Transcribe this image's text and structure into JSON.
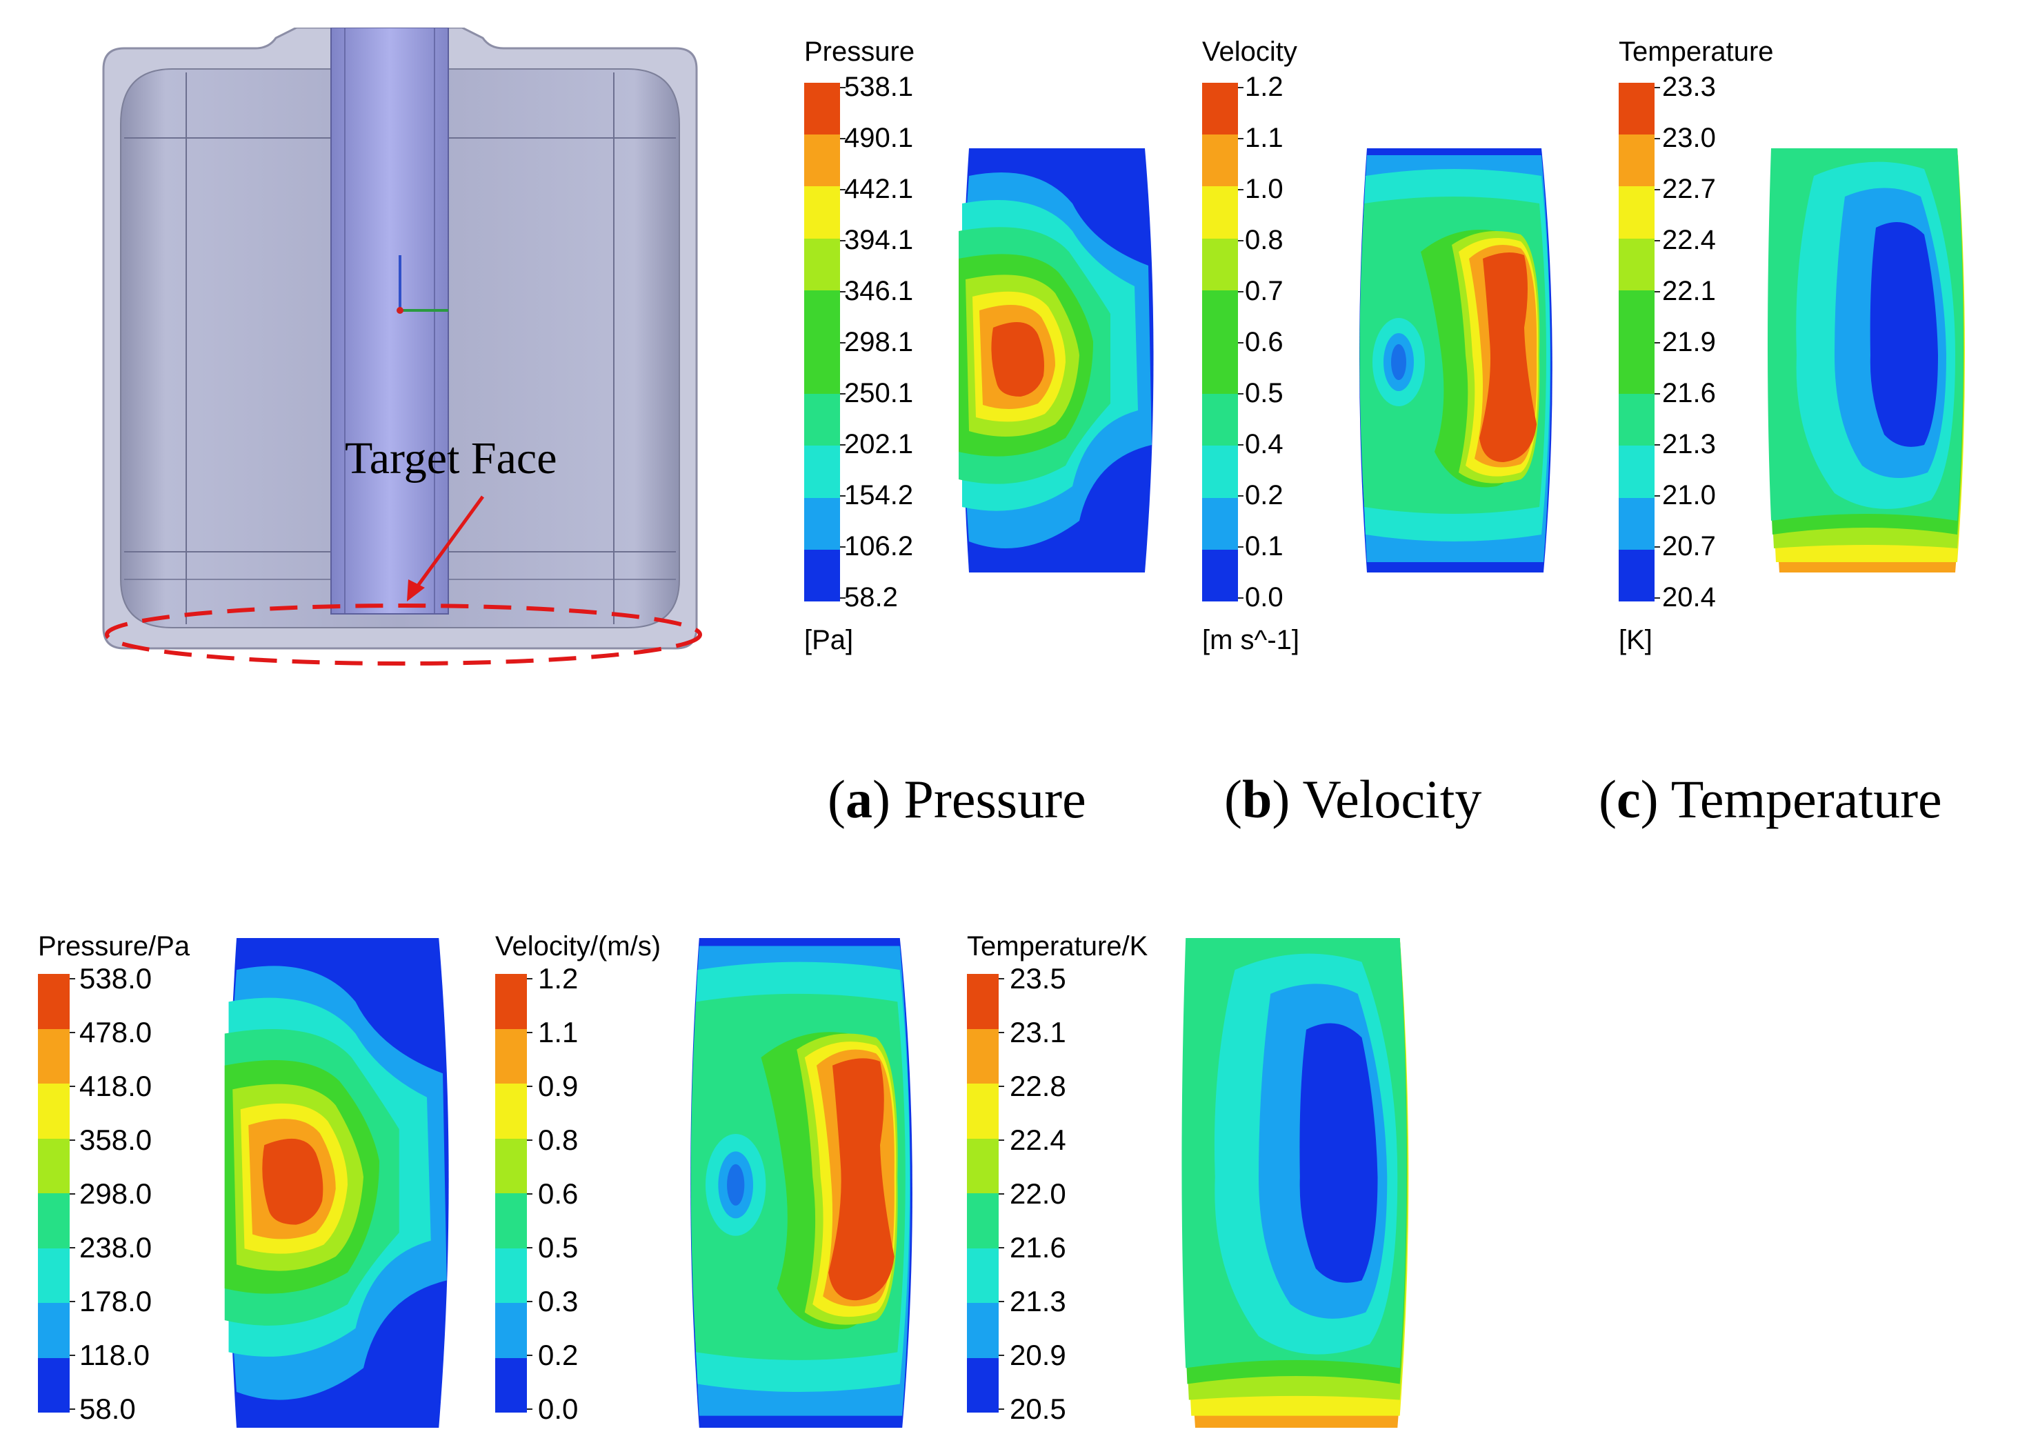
{
  "cad_view": {
    "target_label": "Target Face"
  },
  "captions": {
    "a_letter": "a",
    "a_text": "Pressure",
    "b_letter": "b",
    "b_text": "Velocity",
    "c_letter": "c",
    "c_text": "Temperature"
  },
  "colors": {
    "scale": [
      "#e64a0e",
      "#f7a21b",
      "#f4f01a",
      "#a6e81e",
      "#3ed62e",
      "#26e086",
      "#1fe4d0",
      "#1aa3f0",
      "#0f33e6"
    ]
  },
  "top_row": {
    "pressure": {
      "title": "Pressure",
      "unit": "[Pa]",
      "ticks": [
        "538.1",
        "490.1",
        "442.1",
        "394.1",
        "346.1",
        "298.1",
        "250.1",
        "202.1",
        "154.2",
        "106.2",
        "58.2"
      ]
    },
    "velocity": {
      "title": "Velocity",
      "unit": "[m s^-1]",
      "ticks": [
        "1.2",
        "1.1",
        "1.0",
        "0.8",
        "0.7",
        "0.6",
        "0.5",
        "0.4",
        "0.2",
        "0.1",
        "0.0"
      ]
    },
    "temperature": {
      "title": "Temperature",
      "unit": "[K]",
      "ticks": [
        "23.3",
        "23.0",
        "22.7",
        "22.4",
        "22.1",
        "21.9",
        "21.6",
        "21.3",
        "21.0",
        "20.7",
        "20.4"
      ]
    }
  },
  "bottom_row": {
    "pressure": {
      "title": "Pressure/Pa",
      "ticks": [
        "538.0",
        "478.0",
        "418.0",
        "358.0",
        "298.0",
        "238.0",
        "178.0",
        "118.0",
        "58.0"
      ]
    },
    "velocity": {
      "title": "Velocity/(m/s)",
      "ticks": [
        "1.2",
        "1.1",
        "0.9",
        "0.8",
        "0.6",
        "0.5",
        "0.3",
        "0.2",
        "0.0"
      ]
    },
    "temperature": {
      "title": "Temperature/K",
      "ticks": [
        "23.5",
        "23.1",
        "22.8",
        "22.4",
        "22.0",
        "21.6",
        "21.3",
        "20.9",
        "20.5"
      ]
    }
  }
}
